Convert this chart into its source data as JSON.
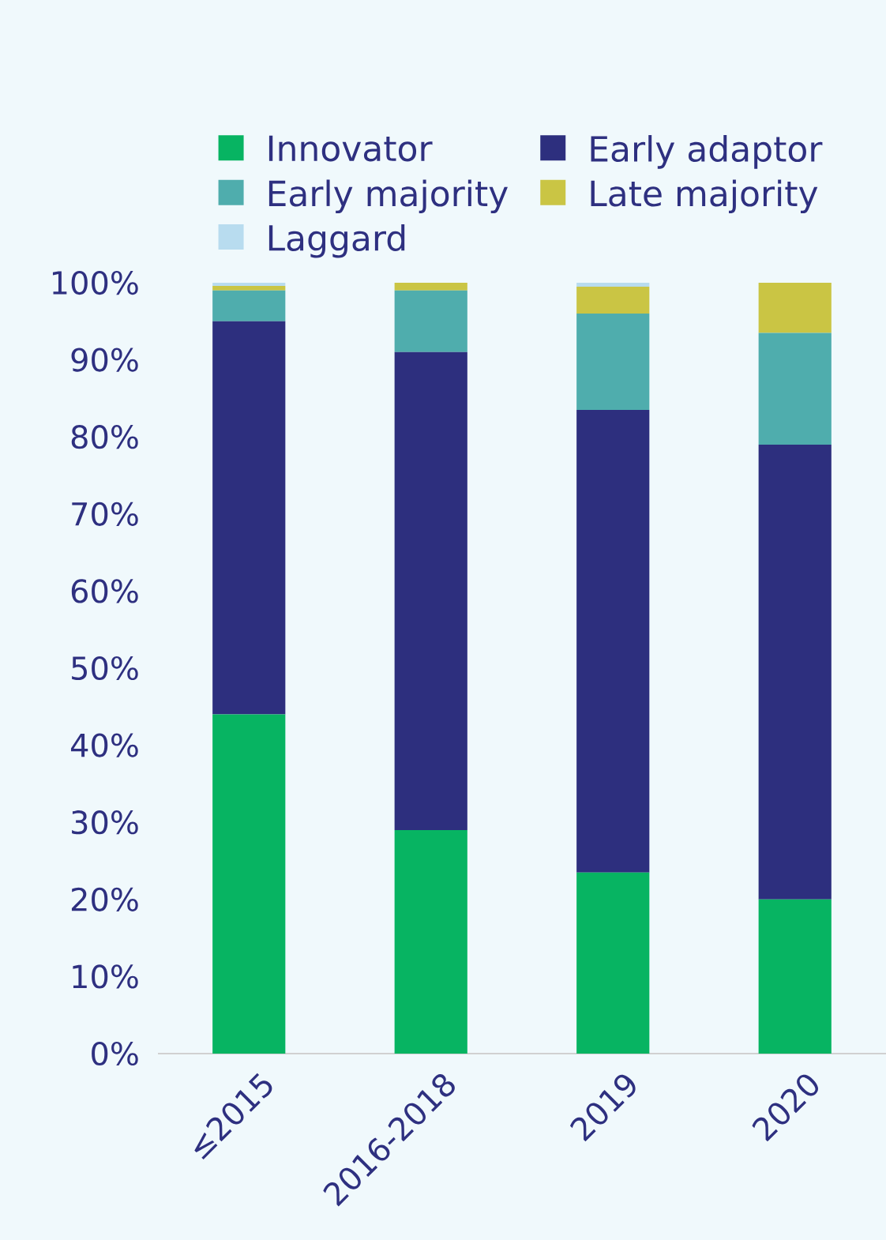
{
  "chart_data": {
    "type": "bar",
    "stacked": true,
    "categories": [
      "≤2015",
      "2016-2018",
      "2019",
      "2020"
    ],
    "series": [
      {
        "name": "Innovator",
        "color": "#07b462",
        "values": [
          44,
          29,
          23.5,
          20
        ]
      },
      {
        "name": "Early adaptor",
        "color": "#2d2f7e",
        "values": [
          51,
          62,
          60,
          59
        ]
      },
      {
        "name": "Early majority",
        "color": "#4fadad",
        "values": [
          4,
          8,
          12.5,
          14.5
        ]
      },
      {
        "name": "Late majority",
        "color": "#cac544",
        "values": [
          0.6,
          1,
          3.5,
          6.5
        ]
      },
      {
        "name": "Laggard",
        "color": "#b8dcef",
        "values": [
          0.4,
          0,
          0.5,
          0
        ]
      }
    ],
    "ylim": [
      0,
      100
    ],
    "yticks": [
      {
        "value": 0,
        "label": "0%"
      },
      {
        "value": 10,
        "label": "10%"
      },
      {
        "value": 20,
        "label": "20%"
      },
      {
        "value": 30,
        "label": "30%"
      },
      {
        "value": 40,
        "label": "40%"
      },
      {
        "value": 50,
        "label": "50%"
      },
      {
        "value": 60,
        "label": "60%"
      },
      {
        "value": 70,
        "label": "70%"
      },
      {
        "value": 80,
        "label": "80%"
      },
      {
        "value": 90,
        "label": "90%"
      },
      {
        "value": 100,
        "label": "100%"
      }
    ],
    "legend": "top"
  }
}
